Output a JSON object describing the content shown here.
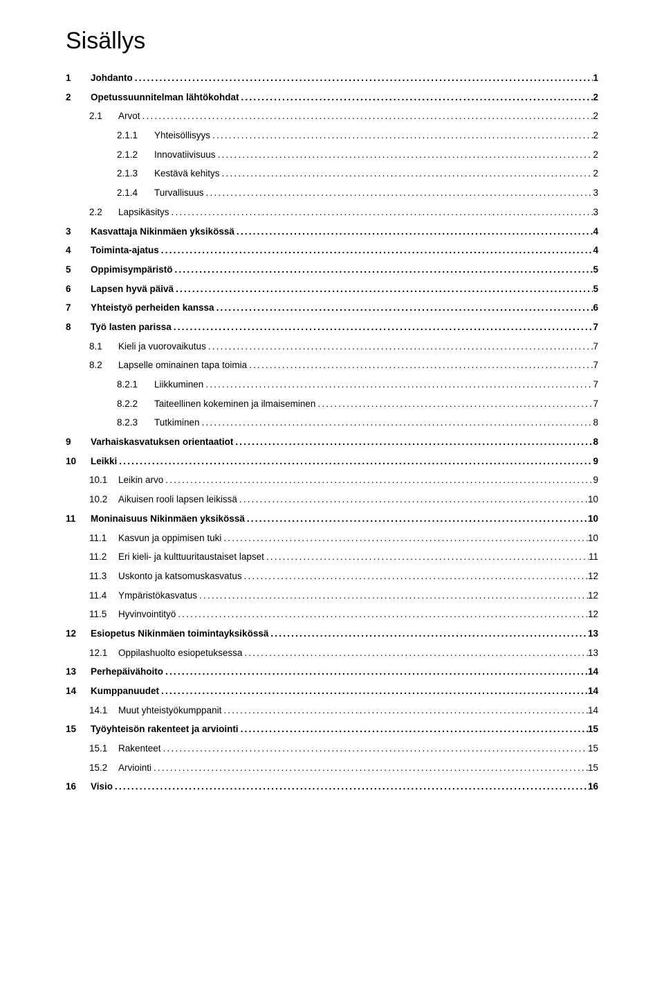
{
  "title": "Sisällys",
  "font": {
    "title_size_pt": 26,
    "body_size_pt": 10,
    "family": "Verdana"
  },
  "colors": {
    "background": "#ffffff",
    "text": "#000000"
  },
  "entries": [
    {
      "level": 1,
      "bold": true,
      "num": "1",
      "text": "Johdanto",
      "page": "1"
    },
    {
      "level": 1,
      "bold": true,
      "num": "2",
      "text": "Opetussuunnitelman lähtökohdat",
      "page": "2"
    },
    {
      "level": 2,
      "bold": false,
      "num": "2.1",
      "text": "Arvot",
      "page": "2"
    },
    {
      "level": 3,
      "bold": false,
      "num": "2.1.1",
      "text": "Yhteisöllisyys",
      "page": "2"
    },
    {
      "level": 3,
      "bold": false,
      "num": "2.1.2",
      "text": "Innovatiivisuus",
      "page": "2"
    },
    {
      "level": 3,
      "bold": false,
      "num": "2.1.3",
      "text": "Kestävä kehitys",
      "page": "2"
    },
    {
      "level": 3,
      "bold": false,
      "num": "2.1.4",
      "text": "Turvallisuus",
      "page": "3"
    },
    {
      "level": 2,
      "bold": false,
      "num": "2.2",
      "text": "Lapsikäsitys",
      "page": "3"
    },
    {
      "level": 1,
      "bold": true,
      "num": "3",
      "text": "Kasvattaja Nikinmäen yksikössä",
      "page": "4"
    },
    {
      "level": 1,
      "bold": true,
      "num": "4",
      "text": "Toiminta-ajatus",
      "page": "4"
    },
    {
      "level": 1,
      "bold": true,
      "num": "5",
      "text": "Oppimisympäristö",
      "page": "5"
    },
    {
      "level": 1,
      "bold": true,
      "num": "6",
      "text": "Lapsen hyvä päivä",
      "page": "5"
    },
    {
      "level": 1,
      "bold": true,
      "num": "7",
      "text": "Yhteistyö perheiden kanssa",
      "page": "6"
    },
    {
      "level": 1,
      "bold": true,
      "num": "8",
      "text": "Työ lasten parissa",
      "page": "7"
    },
    {
      "level": 2,
      "bold": false,
      "num": "8.1",
      "text": "Kieli ja vuorovaikutus",
      "page": "7"
    },
    {
      "level": 2,
      "bold": false,
      "num": "8.2",
      "text": "Lapselle ominainen tapa toimia",
      "page": "7"
    },
    {
      "level": 3,
      "bold": false,
      "num": "8.2.1",
      "text": "Liikkuminen",
      "page": "7"
    },
    {
      "level": 3,
      "bold": false,
      "num": "8.2.2",
      "text": "Taiteellinen kokeminen ja ilmaiseminen",
      "page": "7"
    },
    {
      "level": 3,
      "bold": false,
      "num": "8.2.3",
      "text": "Tutkiminen",
      "page": "8"
    },
    {
      "level": 1,
      "bold": true,
      "num": "9",
      "text": "Varhaiskasvatuksen orientaatiot",
      "page": "8"
    },
    {
      "level": 1,
      "bold": true,
      "num": "10",
      "text": "Leikki",
      "page": "9"
    },
    {
      "level": 2,
      "bold": false,
      "num": "10.1",
      "text": "Leikin arvo",
      "page": "9"
    },
    {
      "level": 2,
      "bold": false,
      "num": "10.2",
      "text": "Aikuisen rooli lapsen leikissä",
      "page": "10"
    },
    {
      "level": 1,
      "bold": true,
      "num": "11",
      "text": "Moninaisuus Nikinmäen yksikössä",
      "page": "10"
    },
    {
      "level": 2,
      "bold": false,
      "num": "11.1",
      "text": "Kasvun ja oppimisen tuki",
      "page": "10"
    },
    {
      "level": 2,
      "bold": false,
      "num": "11.2",
      "text": "Eri kieli- ja kulttuuritaustaiset lapset",
      "page": "11"
    },
    {
      "level": 2,
      "bold": false,
      "num": "11.3",
      "text": "Uskonto ja katsomuskasvatus",
      "page": "12"
    },
    {
      "level": 2,
      "bold": false,
      "num": "11.4",
      "text": "Ympäristökasvatus",
      "page": "12"
    },
    {
      "level": 2,
      "bold": false,
      "num": "11.5",
      "text": "Hyvinvointityö",
      "page": "12"
    },
    {
      "level": 1,
      "bold": true,
      "num": "12",
      "text": "Esiopetus Nikinmäen toimintayksikössä",
      "page": "13"
    },
    {
      "level": 2,
      "bold": false,
      "num": "12.1",
      "text": "Oppilashuolto esiopetuksessa",
      "page": "13"
    },
    {
      "level": 1,
      "bold": true,
      "num": "13",
      "text": "Perhepäivähoito",
      "page": "14"
    },
    {
      "level": 1,
      "bold": true,
      "num": "14",
      "text": "Kumppanuudet",
      "page": "14"
    },
    {
      "level": 2,
      "bold": false,
      "num": "14.1",
      "text": "Muut yhteistyökumppanit",
      "page": "14"
    },
    {
      "level": 1,
      "bold": true,
      "num": "15",
      "text": "Työyhteisön rakenteet ja arviointi",
      "page": "15"
    },
    {
      "level": 2,
      "bold": false,
      "num": "15.1",
      "text": "Rakenteet",
      "page": "15"
    },
    {
      "level": 2,
      "bold": false,
      "num": "15.2",
      "text": "Arviointi",
      "page": "15"
    },
    {
      "level": 1,
      "bold": true,
      "num": "16",
      "text": "Visio",
      "page": "16"
    }
  ]
}
